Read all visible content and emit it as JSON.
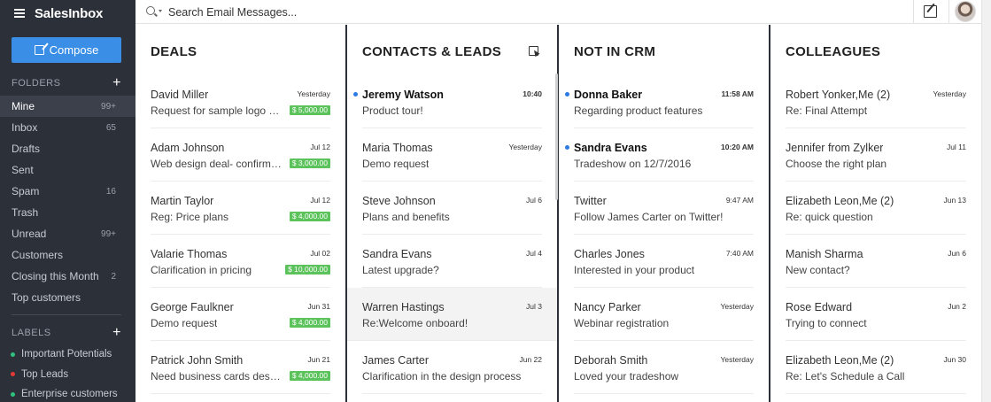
{
  "app": {
    "name": "SalesInbox",
    "compose_label": "Compose"
  },
  "search": {
    "placeholder": "Search Email Messages..."
  },
  "sidebar": {
    "folders_heading": "FOLDERS",
    "folders": [
      {
        "label": "Mine",
        "count": "99+",
        "active": true
      },
      {
        "label": "Inbox",
        "count": "65"
      },
      {
        "label": "Drafts",
        "count": ""
      },
      {
        "label": "Sent",
        "count": ""
      },
      {
        "label": "Spam",
        "count": "16"
      },
      {
        "label": "Trash",
        "count": ""
      },
      {
        "label": "Unread",
        "count": "99+"
      },
      {
        "label": "Customers",
        "count": ""
      },
      {
        "label": "Closing this Month",
        "count": "2"
      },
      {
        "label": "Top customers",
        "count": ""
      }
    ],
    "labels_heading": "LABELS",
    "labels": [
      {
        "label": "Important Potentials",
        "color": "#2ec27e"
      },
      {
        "label": "Top Leads",
        "color": "#e53935"
      },
      {
        "label": "Enterprise customers",
        "color": "#2ec27e"
      }
    ]
  },
  "columns": {
    "deals": {
      "title": "DEALS",
      "items": [
        {
          "name": "David Miller",
          "subject": "Request for sample logo de...",
          "date": "Yesterday",
          "amount": "$ 5,000.00"
        },
        {
          "name": "Adam Johnson",
          "subject": "Web design deal- confirmat...",
          "date": "Jul 12",
          "amount": "$ 3,000.00"
        },
        {
          "name": "Martin Taylor",
          "subject": "Reg: Price plans",
          "date": "Jul 12",
          "amount": "$ 4,000.00"
        },
        {
          "name": "Valarie Thomas",
          "subject": "Clarification in pricing",
          "date": "Jul 02",
          "amount": "$ 10,000.00"
        },
        {
          "name": "George Faulkner",
          "subject": "Demo request",
          "date": "Jun 31",
          "amount": "$ 4,000.00"
        },
        {
          "name": "Patrick John Smith",
          "subject": "Need business cards desig...",
          "date": "Jun 21",
          "amount": "$ 4,000.00"
        }
      ]
    },
    "contacts": {
      "title": "CONTACTS & LEADS",
      "items": [
        {
          "name": "Jeremy Watson",
          "subject": "Product tour!",
          "date": "10:40",
          "unread": true
        },
        {
          "name": "Maria Thomas",
          "subject": "Demo request",
          "date": "Yesterday"
        },
        {
          "name": "Steve Johnson",
          "subject": "Plans and benefits",
          "date": "Jul 6"
        },
        {
          "name": "Sandra Evans",
          "subject": "Latest upgrade?",
          "date": "Jul 4"
        },
        {
          "name": "Warren Hastings",
          "subject": "Re:Welcome onboard!",
          "date": "Jul 3",
          "highlighted": true
        },
        {
          "name": "James Carter",
          "subject": "Clarification in the design process",
          "date": "Jun 22"
        }
      ]
    },
    "notincrm": {
      "title": "NOT IN CRM",
      "items": [
        {
          "name": "Donna Baker",
          "subject": "Regarding product features",
          "date": "11:58 AM",
          "unread": true
        },
        {
          "name": "Sandra Evans",
          "subject": "Tradeshow on 12/7/2016",
          "date": "10:20 AM",
          "unread": true
        },
        {
          "name": "Twitter",
          "subject": "Follow James Carter on Twitter!",
          "date": "9:47 AM"
        },
        {
          "name": "Charles Jones",
          "subject": "Interested in your product",
          "date": "7:40 AM"
        },
        {
          "name": "Nancy Parker",
          "subject": "Webinar registration",
          "date": "Yesterday"
        },
        {
          "name": "Deborah Smith",
          "subject": "Loved your tradeshow",
          "date": "Yesterday"
        }
      ]
    },
    "colleagues": {
      "title": "COLLEAGUES",
      "items": [
        {
          "name": "Robert Yonker,Me (2)",
          "subject": "Re: Final Attempt",
          "date": "Yesterday"
        },
        {
          "name": "Jennifer from Zylker",
          "subject": "Choose the right plan",
          "date": "Jul 11"
        },
        {
          "name": "Elizabeth Leon,Me (2)",
          "subject": "Re: quick question",
          "date": "Jun 13"
        },
        {
          "name": "Manish Sharma",
          "subject": "New contact?",
          "date": "Jun 6"
        },
        {
          "name": "Rose Edward",
          "subject": "Trying to connect",
          "date": "Jun 2"
        },
        {
          "name": "Elizabeth Leon,Me (2)",
          "subject": "Re: Let's Schedule a Call",
          "date": "Jun 30"
        }
      ]
    }
  }
}
